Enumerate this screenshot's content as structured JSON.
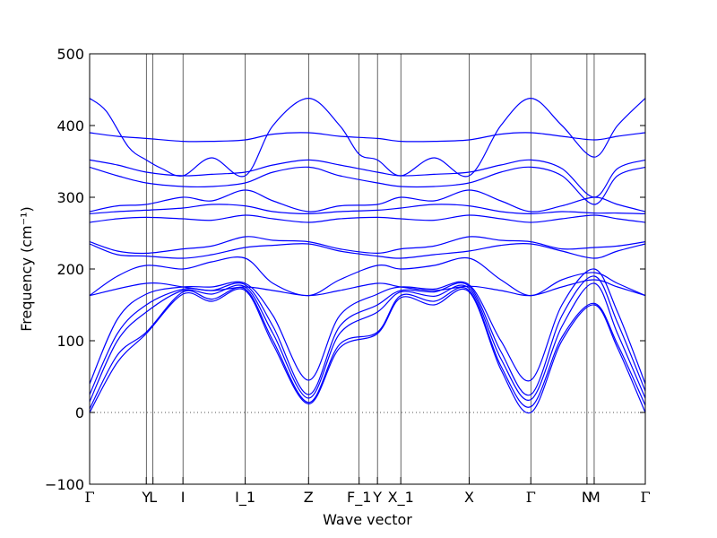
{
  "chart_data": {
    "type": "line",
    "xlabel": "Wave vector",
    "ylabel": "Frequency (cm⁻¹)",
    "ylim": [
      -100,
      500
    ],
    "yticks": [
      -100,
      0,
      100,
      200,
      300,
      400,
      500
    ],
    "xlim": [
      0,
      100
    ],
    "high_symmetry_points": [
      {
        "label": "Γ",
        "x": 0
      },
      {
        "label": "Y",
        "x": 10.2
      },
      {
        "label": "L",
        "x": 11.4
      },
      {
        "label": "I",
        "x": 16.8
      },
      {
        "label": "I_1",
        "x": 28.0
      },
      {
        "label": "Z",
        "x": 39.4
      },
      {
        "label": "F_1",
        "x": 48.5
      },
      {
        "label": "Y",
        "x": 51.8
      },
      {
        "label": "X_1",
        "x": 56.0
      },
      {
        "label": "X",
        "x": 68.3
      },
      {
        "label": "Γ",
        "x": 79.4
      },
      {
        "label": "N",
        "x": 89.5
      },
      {
        "label": "M",
        "x": 90.8
      },
      {
        "label": "Γ",
        "x": 100
      }
    ],
    "zero_line": true,
    "line_color": "#0000ff",
    "zero_line_color": "#555555",
    "series": [
      {
        "x": [
          0,
          5,
          10.2,
          16.8,
          22,
          28,
          33,
          39.4,
          45,
          51.8,
          56,
          62,
          68.3,
          74,
          79.4,
          85,
          90.8,
          95,
          100
        ],
        "values": [
          0,
          70,
          110,
          165,
          155,
          170,
          95,
          12,
          90,
          110,
          160,
          150,
          168,
          60,
          0,
          100,
          150,
          90,
          0
        ]
      },
      {
        "x": [
          0,
          5,
          10.2,
          16.8,
          22,
          28,
          33,
          39.4,
          45,
          51.8,
          56,
          62,
          68.3,
          74,
          79.4,
          85,
          90.8,
          95,
          100
        ],
        "values": [
          5,
          80,
          112,
          168,
          158,
          172,
          100,
          14,
          95,
          112,
          163,
          155,
          170,
          65,
          8,
          105,
          152,
          95,
          10
        ]
      },
      {
        "x": [
          0,
          5,
          10.2,
          16.8,
          22,
          28,
          33,
          39.4,
          45,
          51.8,
          56,
          62,
          68.3,
          74,
          79.4,
          85,
          90.8,
          95,
          100
        ],
        "values": [
          15,
          100,
          140,
          170,
          165,
          175,
          110,
          20,
          110,
          140,
          168,
          162,
          173,
          75,
          18,
          120,
          180,
          110,
          20
        ]
      },
      {
        "x": [
          0,
          5,
          10.2,
          16.8,
          22,
          28,
          33,
          39.4,
          45,
          51.8,
          56,
          62,
          68.3,
          74,
          79.4,
          85,
          90.8,
          95,
          100
        ],
        "values": [
          25,
          110,
          150,
          172,
          170,
          178,
          120,
          25,
          120,
          150,
          170,
          168,
          176,
          85,
          25,
          135,
          190,
          125,
          30
        ]
      },
      {
        "x": [
          0,
          5,
          10.2,
          16.8,
          22,
          28,
          33,
          39.4,
          45,
          51.8,
          56,
          62,
          68.3,
          74,
          79.4,
          85,
          90.8,
          95,
          100
        ],
        "values": [
          40,
          130,
          165,
          175,
          175,
          180,
          135,
          45,
          135,
          165,
          175,
          172,
          178,
          100,
          45,
          150,
          200,
          140,
          40
        ]
      },
      {
        "x": [
          0,
          10.2,
          16.8,
          22,
          28,
          33,
          39.4,
          45,
          51.8,
          56,
          62,
          68.3,
          74,
          79.4,
          85,
          90.8,
          95,
          100
        ],
        "values": [
          163,
          180,
          175,
          170,
          175,
          170,
          163,
          170,
          180,
          175,
          170,
          176,
          170,
          163,
          175,
          185,
          175,
          163
        ]
      },
      {
        "x": [
          0,
          5,
          10.2,
          16.8,
          22,
          28,
          33,
          39.4,
          45,
          51.8,
          56,
          62,
          68.3,
          74,
          79.4,
          85,
          90.8,
          95,
          100
        ],
        "values": [
          163,
          190,
          205,
          200,
          210,
          215,
          180,
          163,
          185,
          205,
          200,
          205,
          215,
          185,
          163,
          185,
          195,
          180,
          163
        ]
      },
      {
        "x": [
          0,
          5,
          10.2,
          16.8,
          22,
          28,
          33,
          39.4,
          45,
          51.8,
          56,
          62,
          68.3,
          74,
          79.4,
          85,
          90.8,
          95,
          100
        ],
        "values": [
          235,
          220,
          218,
          215,
          220,
          230,
          233,
          235,
          225,
          218,
          215,
          220,
          225,
          233,
          235,
          225,
          215,
          225,
          235
        ]
      },
      {
        "x": [
          0,
          5,
          10.2,
          16.8,
          22,
          28,
          33,
          39.4,
          45,
          51.8,
          56,
          62,
          68.3,
          74,
          79.4,
          85,
          90.8,
          95,
          100
        ],
        "values": [
          238,
          225,
          222,
          228,
          232,
          245,
          240,
          238,
          228,
          222,
          228,
          232,
          245,
          240,
          238,
          228,
          230,
          232,
          238
        ]
      },
      {
        "x": [
          0,
          5,
          10.2,
          16.8,
          22,
          28,
          33,
          39.4,
          45,
          51.8,
          56,
          62,
          68.3,
          74,
          79.4,
          85,
          90.8,
          95,
          100
        ],
        "values": [
          265,
          270,
          272,
          270,
          268,
          275,
          270,
          265,
          270,
          272,
          270,
          268,
          275,
          270,
          265,
          270,
          275,
          270,
          265
        ]
      },
      {
        "x": [
          0,
          5,
          10.2,
          16.8,
          22,
          28,
          33,
          39.4,
          45,
          51.8,
          56,
          62,
          68.3,
          74,
          79.4,
          85,
          90.8,
          95,
          100
        ],
        "values": [
          277,
          280,
          282,
          285,
          290,
          288,
          280,
          277,
          280,
          282,
          285,
          290,
          288,
          280,
          277,
          280,
          278,
          278,
          277
        ]
      },
      {
        "x": [
          0,
          5,
          10.2,
          16.8,
          22,
          28,
          33,
          39.4,
          45,
          51.8,
          56,
          62,
          68.3,
          74,
          79.4,
          85,
          90.8,
          95,
          100
        ],
        "values": [
          280,
          288,
          290,
          300,
          295,
          310,
          295,
          280,
          288,
          290,
          300,
          295,
          310,
          295,
          280,
          288,
          300,
          290,
          280
        ]
      },
      {
        "x": [
          0,
          5,
          10.2,
          16.8,
          22,
          28,
          33,
          39.4,
          45,
          51.8,
          56,
          62,
          68.3,
          74,
          79.4,
          85,
          90.8,
          95,
          100
        ],
        "values": [
          342,
          330,
          320,
          315,
          315,
          320,
          335,
          342,
          330,
          320,
          315,
          315,
          320,
          335,
          342,
          330,
          290,
          330,
          342
        ]
      },
      {
        "x": [
          0,
          5,
          10.2,
          16.8,
          22,
          28,
          33,
          39.4,
          45,
          51.8,
          56,
          62,
          68.3,
          74,
          79.4,
          85,
          90.8,
          95,
          100
        ],
        "values": [
          352,
          345,
          335,
          330,
          332,
          335,
          345,
          352,
          345,
          335,
          330,
          332,
          335,
          345,
          352,
          340,
          300,
          340,
          352
        ]
      },
      {
        "x": [
          0,
          5,
          10.2,
          16.8,
          22,
          28,
          33,
          39.4,
          45,
          51.8,
          56,
          62,
          68.3,
          74,
          79.4,
          85,
          90.8,
          95,
          100
        ],
        "values": [
          390,
          385,
          382,
          378,
          378,
          380,
          388,
          390,
          385,
          382,
          378,
          378,
          380,
          388,
          390,
          385,
          380,
          385,
          390
        ]
      },
      {
        "x": [
          0,
          3,
          7,
          10.2,
          13,
          16.8,
          22,
          28,
          33,
          39.4,
          45,
          48.5,
          51.8,
          56,
          62,
          68.3,
          74,
          79.4,
          85,
          90.8,
          95,
          100
        ],
        "values": [
          438,
          420,
          370,
          352,
          340,
          330,
          355,
          330,
          400,
          438,
          400,
          360,
          352,
          330,
          355,
          330,
          400,
          438,
          400,
          356,
          400,
          438
        ]
      }
    ]
  }
}
